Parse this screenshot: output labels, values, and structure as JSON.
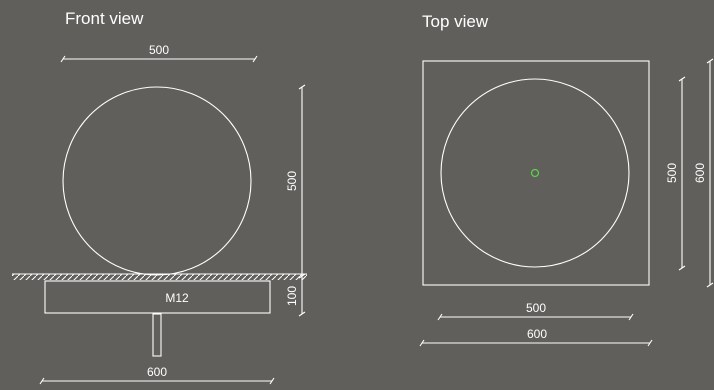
{
  "front_view": {
    "title": "Front view",
    "dim_width_ball": "500",
    "dim_height_ball": "500",
    "dim_base_height": "100",
    "base_label": "M12",
    "dim_base_width": "600"
  },
  "top_view": {
    "title": "Top view",
    "dim_height_ball": "500",
    "dim_height_square": "600",
    "dim_width_ball": "500",
    "dim_width_square": "600"
  },
  "colors": {
    "background": "#615f5b",
    "line": "#ffffff",
    "center_marker": "#5bd24a"
  }
}
